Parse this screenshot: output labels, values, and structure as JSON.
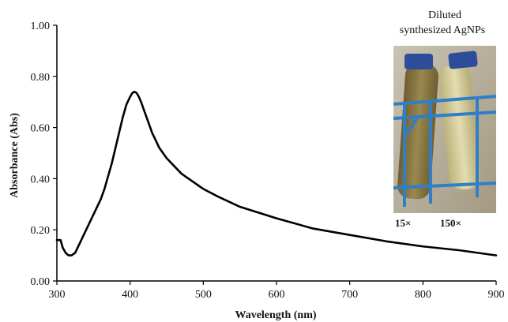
{
  "chart_data": {
    "type": "line",
    "title": "",
    "xlabel": "Wavelength (nm)",
    "ylabel": "Absorbance (Abs)",
    "xlim": [
      300,
      900
    ],
    "ylim": [
      0,
      1
    ],
    "x_ticks": [
      "300",
      "400",
      "500",
      "600",
      "700",
      "800",
      "900"
    ],
    "y_ticks": [
      "0.00",
      "0.20",
      "0.40",
      "0.60",
      "0.80",
      "1.00"
    ],
    "grid": false,
    "legend": "none",
    "series": [
      {
        "color": "#000000",
        "x": [
          300,
          305,
          308,
          312,
          316,
          320,
          325,
          330,
          335,
          340,
          345,
          350,
          355,
          360,
          365,
          370,
          375,
          380,
          385,
          390,
          395,
          400,
          403,
          406,
          409,
          412,
          415,
          420,
          425,
          430,
          440,
          450,
          460,
          470,
          480,
          500,
          520,
          550,
          600,
          650,
          700,
          750,
          800,
          850,
          900
        ],
        "y": [
          0.16,
          0.16,
          0.13,
          0.11,
          0.1,
          0.1,
          0.11,
          0.14,
          0.17,
          0.2,
          0.23,
          0.26,
          0.29,
          0.32,
          0.36,
          0.41,
          0.46,
          0.52,
          0.58,
          0.64,
          0.69,
          0.72,
          0.735,
          0.74,
          0.735,
          0.72,
          0.7,
          0.66,
          0.62,
          0.58,
          0.52,
          0.48,
          0.45,
          0.42,
          0.4,
          0.36,
          0.33,
          0.29,
          0.245,
          0.205,
          0.18,
          0.155,
          0.135,
          0.12,
          0.1
        ]
      }
    ]
  },
  "inset": {
    "caption_line1": "Diluted",
    "caption_line2": "synthesized AgNPs",
    "tube_left_label": "15×",
    "tube_right_label": "150×",
    "colors": {
      "cap": "#2d4d9a",
      "rack": "#2f7fc8",
      "tube_left": "#8d7a46",
      "tube_right": "#c9c08a",
      "background": "#b7b09c"
    }
  }
}
